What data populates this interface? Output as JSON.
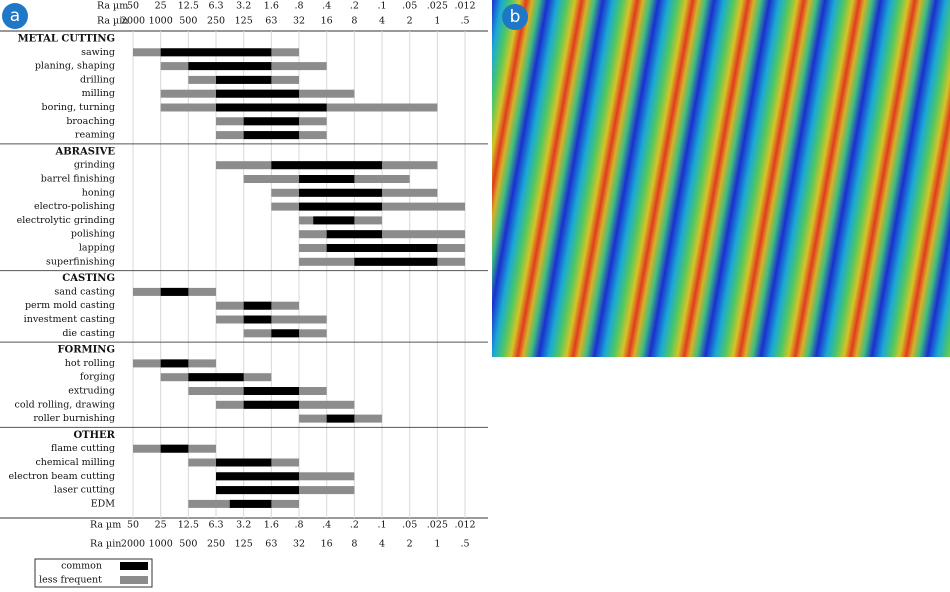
{
  "chart_data": {
    "type": "range",
    "panel_labels": [
      "a",
      "b"
    ],
    "xlabel": "Ra µm",
    "x2label": "Ra µin",
    "xticks": [
      50,
      25,
      12.5,
      6.3,
      3.2,
      1.6,
      {
        "value": 0.8,
        "label": ".8"
      },
      {
        "value": 0.4,
        "label": ".4"
      },
      {
        "value": 0.2,
        "label": ".2"
      },
      {
        "value": 0.1,
        "label": ".1"
      },
      {
        "value": 0.05,
        "label": ".05"
      },
      {
        "value": 0.025,
        "label": ".025"
      },
      {
        "value": 0.012,
        "label": ".012"
      }
    ],
    "x2ticks": [
      2000,
      1000,
      500,
      250,
      125,
      63,
      32,
      16,
      8,
      4,
      2,
      1,
      {
        "value": 0.5,
        "label": ".5"
      }
    ],
    "grid": true,
    "legend": [
      {
        "name": "common",
        "color": "#000000"
      },
      {
        "name": "less frequent",
        "color": "#8c8c8c"
      }
    ],
    "groups": [
      {
        "name": "METAL CUTTING",
        "processes": [
          {
            "name": "sawing",
            "less_frequent": [
              50,
              0.8
            ],
            "common": [
              25,
              1.6
            ]
          },
          {
            "name": "planing, shaping",
            "less_frequent": [
              25,
              0.4
            ],
            "common": [
              12.5,
              1.6
            ]
          },
          {
            "name": "drilling",
            "less_frequent": [
              12.5,
              0.8
            ],
            "common": [
              6.3,
              1.6
            ]
          },
          {
            "name": "milling",
            "less_frequent": [
              25,
              0.2
            ],
            "common": [
              6.3,
              0.8
            ]
          },
          {
            "name": "boring, turning",
            "less_frequent": [
              25,
              0.025
            ],
            "common": [
              6.3,
              0.4
            ]
          },
          {
            "name": "broaching",
            "less_frequent": [
              6.3,
              0.4
            ],
            "common": [
              3.2,
              0.8
            ]
          },
          {
            "name": "reaming",
            "less_frequent": [
              6.3,
              0.4
            ],
            "common": [
              3.2,
              0.8
            ]
          }
        ]
      },
      {
        "name": "ABRASIVE",
        "processes": [
          {
            "name": "grinding",
            "less_frequent": [
              6.3,
              0.025
            ],
            "common": [
              1.6,
              0.1
            ]
          },
          {
            "name": "barrel finishing",
            "less_frequent": [
              3.2,
              0.05
            ],
            "common": [
              0.8,
              0.2
            ]
          },
          {
            "name": "honing",
            "less_frequent": [
              1.6,
              0.025
            ],
            "common": [
              0.8,
              0.1
            ]
          },
          {
            "name": "electro-polishing",
            "less_frequent": [
              1.6,
              0.012
            ],
            "common": [
              0.8,
              0.1
            ]
          },
          {
            "name": "electrolytic grinding",
            "less_frequent": [
              0.8,
              0.1
            ],
            "common": [
              0.56,
              0.2
            ]
          },
          {
            "name": "polishing",
            "less_frequent": [
              0.8,
              0.012
            ],
            "common": [
              0.4,
              0.1
            ]
          },
          {
            "name": "lapping",
            "less_frequent": [
              0.8,
              0.012
            ],
            "common": [
              0.4,
              0.025
            ]
          },
          {
            "name": "superfinishing",
            "less_frequent": [
              0.8,
              0.012
            ],
            "common": [
              0.2,
              0.025
            ]
          }
        ]
      },
      {
        "name": "CASTING",
        "processes": [
          {
            "name": "sand casting",
            "less_frequent": [
              50,
              6.3
            ],
            "common": [
              25,
              12.5
            ]
          },
          {
            "name": "perm mold casting",
            "less_frequent": [
              6.3,
              0.8
            ],
            "common": [
              3.2,
              1.6
            ]
          },
          {
            "name": "investment casting",
            "less_frequent": [
              6.3,
              0.4
            ],
            "common": [
              3.2,
              1.6
            ]
          },
          {
            "name": "die casting",
            "less_frequent": [
              3.2,
              0.4
            ],
            "common": [
              1.6,
              0.8
            ]
          }
        ]
      },
      {
        "name": "FORMING",
        "processes": [
          {
            "name": "hot rolling",
            "less_frequent": [
              50,
              6.3
            ],
            "common": [
              25,
              12.5
            ]
          },
          {
            "name": "forging",
            "less_frequent": [
              25,
              1.6
            ],
            "common": [
              12.5,
              3.2
            ]
          },
          {
            "name": "extruding",
            "less_frequent": [
              12.5,
              0.4
            ],
            "common": [
              3.2,
              0.8
            ]
          },
          {
            "name": "cold rolling, drawing",
            "less_frequent": [
              6.3,
              0.2
            ],
            "common": [
              3.2,
              0.8
            ]
          },
          {
            "name": "roller burnishing",
            "less_frequent": [
              0.8,
              0.1
            ],
            "common": [
              0.4,
              0.2
            ]
          }
        ]
      },
      {
        "name": "OTHER",
        "processes": [
          {
            "name": "flame cutting",
            "less_frequent": [
              50,
              6.3
            ],
            "common": [
              25,
              12.5
            ]
          },
          {
            "name": "chemical milling",
            "less_frequent": [
              12.5,
              0.8
            ],
            "common": [
              6.3,
              1.6
            ]
          },
          {
            "name": "electron beam cutting",
            "less_frequent": [
              6.3,
              0.2
            ],
            "common": [
              6.3,
              0.8
            ]
          },
          {
            "name": "laser cutting",
            "less_frequent": [
              6.3,
              0.2
            ],
            "common": [
              6.3,
              0.8
            ]
          },
          {
            "name": "EDM",
            "less_frequent": [
              12.5,
              0.8
            ],
            "common": [
              4.5,
              1.6
            ]
          }
        ]
      }
    ]
  }
}
